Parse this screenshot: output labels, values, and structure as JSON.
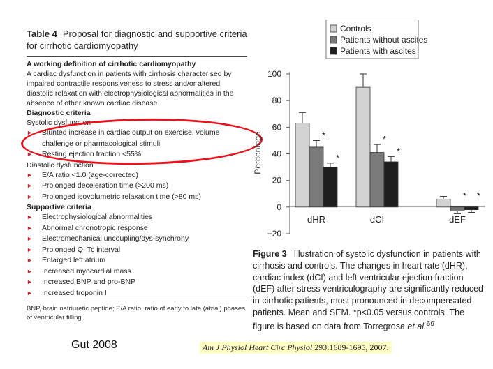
{
  "table": {
    "label": "Table 4",
    "title": "Proposal for diagnostic and supportive criteria for cirrhotic cardiomyopathy",
    "working_heading": "A working definition of cirrhotic cardiomyopathy",
    "working_text": "A cardiac dysfunction in patients with cirrhosis characterised by impaired contractile responsiveness to stress and/or altered diastolic relaxation with electrophysiological abnormalities in the absence of other known cardiac disease",
    "diagnostic_heading": "Diagnostic criteria",
    "systolic_label": "Systolic dysfunction",
    "systolic_items": [
      "Blunted increase in cardiac output on exercise, volume challenge or pharmacological stimuli",
      "Resting ejection fraction <55%"
    ],
    "diastolic_label": "Diastolic dysfunction",
    "diastolic_items": [
      "E/A ratio <1.0 (age-corrected)",
      "Prolonged deceleration time (>200 ms)",
      "Prolonged isovolumetric relaxation time (>80 ms)"
    ],
    "supportive_heading": "Supportive criteria",
    "supportive_items": [
      "Electrophysiological abnormalities",
      "Abnormal chronotropic response",
      "Electromechanical uncoupling/dys-synchrony",
      "Prolonged Q–Tc interval",
      "Enlarged left atrium",
      "Increased myocardial mass",
      "Increased BNP and pro-BNP",
      "Increased troponin I"
    ],
    "footnote": "BNP, brain natriuretic peptide; E/A ratio, ratio of early to late (atrial) phases of ventricular filling."
  },
  "author_note": "Gut 2008",
  "chart_data": {
    "type": "bar",
    "ylabel": "Percentage",
    "ylim": [
      -20,
      100
    ],
    "yticks": [
      -20,
      0,
      20,
      40,
      60,
      80,
      100
    ],
    "categories": [
      "dHR",
      "dCI",
      "dEF"
    ],
    "series": [
      {
        "name": "Controls",
        "color": "#d2d2d2",
        "values": [
          63,
          90,
          6
        ],
        "errors": [
          8,
          10,
          2
        ],
        "sig": [
          "",
          "",
          ""
        ]
      },
      {
        "name": "Patients without ascites",
        "color": "#7a7a7a",
        "values": [
          45,
          41,
          -3
        ],
        "errors": [
          5,
          6,
          2
        ],
        "sig": [
          "*",
          "*",
          "*"
        ]
      },
      {
        "name": "Patients with ascites",
        "color": "#1e1e1e",
        "values": [
          30,
          34,
          -2
        ],
        "errors": [
          3,
          4,
          2
        ],
        "sig": [
          "*",
          "*",
          "*"
        ]
      }
    ],
    "tick_labels": {
      "neg20": "−20",
      "p0": "0",
      "p20": "20",
      "p40": "40",
      "p60": "60",
      "p80": "80",
      "p100": "100"
    }
  },
  "figure": {
    "label": "Figure 3",
    "text_main": "Illustration of systolic dysfunction in patients with cirrhosis and controls. The changes in heart rate (dHR), cardiac index (dCI) and left ventricular ejection fraction (dEF) after stress ventriculography are significantly reduced in cirrhotic patients, most pronounced in decompensated patients. Mean and SEM. *p<0.05 versus controls. The figure is based on data from Torregrosa ",
    "text_em": "et al.",
    "text_ref": "69"
  },
  "citation": {
    "journal": "Am J Physiol Heart Circ Physiol",
    "ref": "293:1689-1695, 2007."
  }
}
